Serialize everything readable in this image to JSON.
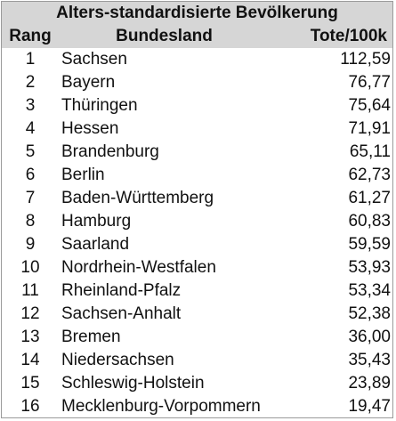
{
  "chart_data": {
    "type": "table",
    "title": "Alters-standardisierte Bevölkerung",
    "columns": [
      "Rang",
      "Bundesland",
      "Tote/100k"
    ],
    "rows": [
      {
        "rank": "1",
        "state": "Sachsen",
        "value": "112,59"
      },
      {
        "rank": "2",
        "state": "Bayern",
        "value": "76,77"
      },
      {
        "rank": "3",
        "state": "Thüringen",
        "value": "75,64"
      },
      {
        "rank": "4",
        "state": "Hessen",
        "value": "71,91"
      },
      {
        "rank": "5",
        "state": "Brandenburg",
        "value": "65,11"
      },
      {
        "rank": "6",
        "state": "Berlin",
        "value": "62,73"
      },
      {
        "rank": "7",
        "state": "Baden-Württemberg",
        "value": "61,27"
      },
      {
        "rank": "8",
        "state": "Hamburg",
        "value": "60,83"
      },
      {
        "rank": "9",
        "state": "Saarland",
        "value": "59,59"
      },
      {
        "rank": "10",
        "state": "Nordrhein-Westfalen",
        "value": "53,93"
      },
      {
        "rank": "11",
        "state": "Rheinland-Pfalz",
        "value": "53,34"
      },
      {
        "rank": "12",
        "state": "Sachsen-Anhalt",
        "value": "52,38"
      },
      {
        "rank": "13",
        "state": "Bremen",
        "value": "36,00"
      },
      {
        "rank": "14",
        "state": "Niedersachsen",
        "value": "35,43"
      },
      {
        "rank": "15",
        "state": "Schleswig-Holstein",
        "value": "23,89"
      },
      {
        "rank": "16",
        "state": "Mecklenburg-Vorpommern",
        "value": "19,47"
      }
    ]
  }
}
